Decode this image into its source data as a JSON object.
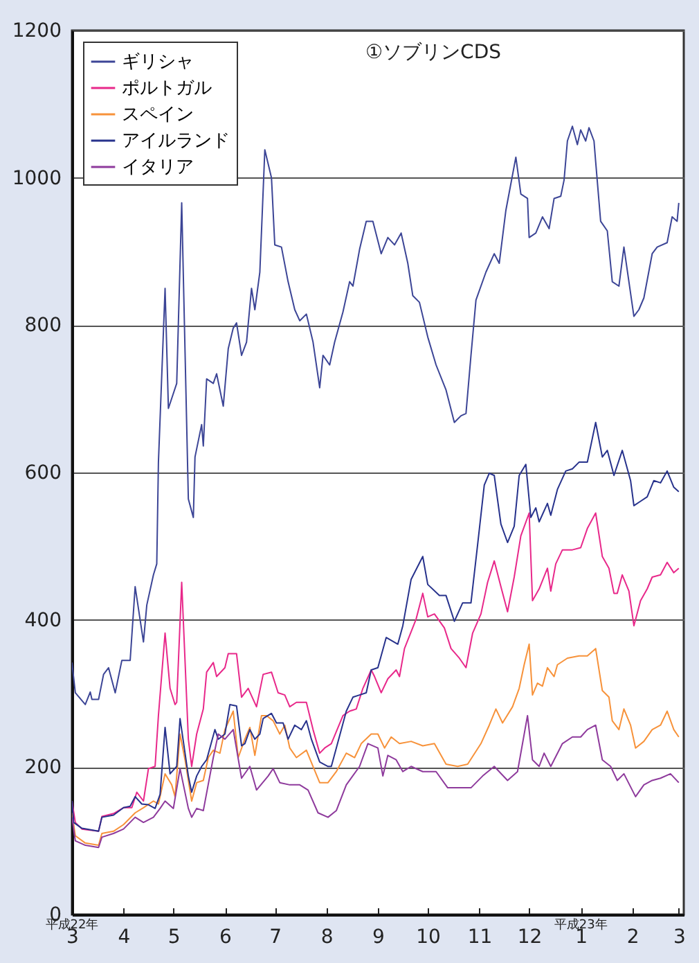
{
  "chart_data": {
    "type": "line",
    "title": "①ソブリンCDS",
    "xlim": [
      "2010-03-01",
      "2011-03-04"
    ],
    "ylim": [
      0,
      1200
    ],
    "xticks": [
      {
        "value": "2010-03-01",
        "label": "3"
      },
      {
        "value": "2010-04-01",
        "label": "4"
      },
      {
        "value": "2010-05-01",
        "label": "5"
      },
      {
        "value": "2010-06-01",
        "label": "6"
      },
      {
        "value": "2010-07-01",
        "label": "7"
      },
      {
        "value": "2010-08-01",
        "label": "8"
      },
      {
        "value": "2010-09-01",
        "label": "9"
      },
      {
        "value": "2010-10-01",
        "label": "10"
      },
      {
        "value": "2010-11-01",
        "label": "11"
      },
      {
        "value": "2010-12-01",
        "label": "12"
      },
      {
        "value": "2011-01-01",
        "label": "1"
      },
      {
        "value": "2011-02-01",
        "label": "2"
      },
      {
        "value": "2011-03-01",
        "label": "3"
      }
    ],
    "yticks": [
      0,
      200,
      400,
      600,
      800,
      1000,
      1200
    ],
    "grid": "y",
    "legend": "top left",
    "annotations": [
      "平成22年",
      "平成23年"
    ],
    "series": [
      {
        "name": "ギリシャ",
        "color": "#3c4596",
        "x": [
          "2010-03-01",
          "2010-03-03",
          "2010-03-09",
          "2010-03-12",
          "2010-03-13",
          "2010-03-17",
          "2010-03-20",
          "2010-03-23",
          "2010-03-27",
          "2010-03-31",
          "2010-04-05",
          "2010-04-08",
          "2010-04-13",
          "2010-04-15",
          "2010-04-19",
          "2010-04-21",
          "2010-04-22",
          "2010-04-26",
          "2010-04-28",
          "2010-05-03",
          "2010-05-06",
          "2010-05-10",
          "2010-05-13",
          "2010-05-14",
          "2010-05-18",
          "2010-05-19",
          "2010-05-21",
          "2010-05-25",
          "2010-05-27",
          "2010-05-31",
          "2010-06-03",
          "2010-06-06",
          "2010-06-08",
          "2010-06-11",
          "2010-06-14",
          "2010-06-17",
          "2010-06-19",
          "2010-06-22",
          "2010-06-25",
          "2010-06-29",
          "2010-07-01",
          "2010-07-05",
          "2010-07-09",
          "2010-07-13",
          "2010-07-16",
          "2010-07-20",
          "2010-07-24",
          "2010-07-28",
          "2010-07-30",
          "2010-08-03",
          "2010-08-06",
          "2010-08-11",
          "2010-08-15",
          "2010-08-17",
          "2010-08-21",
          "2010-08-25",
          "2010-08-29",
          "2010-09-03",
          "2010-09-07",
          "2010-09-11",
          "2010-09-15",
          "2010-09-19",
          "2010-09-22",
          "2010-09-26",
          "2010-10-01",
          "2010-10-06",
          "2010-10-12",
          "2010-10-17",
          "2010-10-21",
          "2010-10-24",
          "2010-10-27",
          "2010-10-30",
          "2010-11-05",
          "2010-11-10",
          "2010-11-13",
          "2010-11-17",
          "2010-11-23",
          "2010-11-26",
          "2010-11-30",
          "2010-12-01",
          "2010-12-05",
          "2010-12-09",
          "2010-12-13",
          "2010-12-16",
          "2010-12-20",
          "2010-12-22",
          "2010-12-24",
          "2010-12-27",
          "2010-12-30",
          "2011-01-01",
          "2011-01-04",
          "2011-01-06",
          "2011-01-09",
          "2011-01-10",
          "2011-01-13",
          "2011-01-17",
          "2011-01-20",
          "2011-01-24",
          "2011-01-27",
          "2011-01-30",
          "2011-02-02",
          "2011-02-05",
          "2011-02-08",
          "2011-02-13",
          "2011-02-16",
          "2011-02-22",
          "2011-02-25",
          "2011-02-28",
          "2011-03-01"
        ],
        "values": [
          342,
          301,
          285,
          302,
          292,
          292,
          326,
          335,
          301,
          345,
          345,
          445,
          370,
          420,
          461,
          476,
          614,
          850,
          687,
          721,
          966,
          564,
          539,
          621,
          665,
          636,
          727,
          721,
          734,
          690,
          768,
          796,
          803,
          759,
          777,
          850,
          821,
          872,
          1038,
          1000,
          909,
          906,
          859,
          821,
          806,
          815,
          777,
          715,
          759,
          746,
          777,
          818,
          859,
          853,
          903,
          941,
          941,
          897,
          919,
          909,
          925,
          884,
          840,
          831,
          784,
          746,
          712,
          668,
          677,
          680,
          759,
          834,
          872,
          897,
          884,
          956,
          1028,
          978,
          972,
          919,
          925,
          947,
          931,
          972,
          975,
          997,
          1050,
          1070,
          1045,
          1065,
          1050,
          1068,
          1050,
          1022,
          941,
          928,
          859,
          853,
          906,
          859,
          812,
          821,
          837,
          897,
          906,
          912,
          947,
          941,
          966
        ]
      },
      {
        "name": "ポルトガル",
        "color": "#e8288a",
        "x": [
          "2010-03-01",
          "2010-03-03",
          "2010-03-07",
          "2010-03-17",
          "2010-03-19",
          "2010-03-26",
          "2010-04-01",
          "2010-04-06",
          "2010-04-09",
          "2010-04-13",
          "2010-04-16",
          "2010-04-20",
          "2010-04-22",
          "2010-04-26",
          "2010-04-29",
          "2010-05-02",
          "2010-05-03",
          "2010-05-06",
          "2010-05-10",
          "2010-05-12",
          "2010-05-15",
          "2010-05-19",
          "2010-05-21",
          "2010-05-25",
          "2010-05-27",
          "2010-06-01",
          "2010-06-03",
          "2010-06-08",
          "2010-06-11",
          "2010-06-15",
          "2010-06-20",
          "2010-06-24",
          "2010-06-29",
          "2010-07-03",
          "2010-07-07",
          "2010-07-10",
          "2010-07-14",
          "2010-07-20",
          "2010-07-24",
          "2010-07-28",
          "2010-07-31",
          "2010-08-04",
          "2010-08-11",
          "2010-08-15",
          "2010-08-19",
          "2010-08-23",
          "2010-08-28",
          "2010-08-30",
          "2010-09-03",
          "2010-09-07",
          "2010-09-12",
          "2010-09-14",
          "2010-09-17",
          "2010-09-24",
          "2010-09-28",
          "2010-10-01",
          "2010-10-05",
          "2010-10-11",
          "2010-10-15",
          "2010-10-20",
          "2010-10-24",
          "2010-10-28",
          "2010-11-02",
          "2010-11-06",
          "2010-11-10",
          "2010-11-14",
          "2010-11-18",
          "2010-11-22",
          "2010-11-26",
          "2010-12-01",
          "2010-12-03",
          "2010-12-07",
          "2010-12-12",
          "2010-12-14",
          "2010-12-17",
          "2010-12-21",
          "2010-12-27",
          "2011-01-01",
          "2011-01-05",
          "2011-01-10",
          "2011-01-14",
          "2011-01-18",
          "2011-01-21",
          "2011-01-23",
          "2011-01-26",
          "2011-01-30",
          "2011-02-02",
          "2011-02-06",
          "2011-02-10",
          "2011-02-13",
          "2011-02-18",
          "2011-02-22",
          "2011-02-26",
          "2011-03-01"
        ],
        "values": [
          154,
          125,
          116,
          113,
          133,
          137,
          145,
          145,
          166,
          154,
          198,
          201,
          270,
          382,
          307,
          285,
          288,
          451,
          238,
          201,
          245,
          279,
          329,
          342,
          323,
          335,
          354,
          354,
          295,
          307,
          282,
          326,
          329,
          301,
          298,
          282,
          288,
          288,
          251,
          219,
          226,
          232,
          270,
          276,
          279,
          307,
          332,
          323,
          301,
          320,
          332,
          323,
          361,
          401,
          436,
          404,
          408,
          389,
          361,
          348,
          335,
          382,
          408,
          451,
          480,
          445,
          411,
          458,
          514,
          545,
          426,
          442,
          470,
          439,
          476,
          495,
          495,
          498,
          524,
          545,
          486,
          470,
          436,
          436,
          461,
          439,
          392,
          426,
          442,
          458,
          461,
          478,
          464,
          470
        ]
      },
      {
        "name": "スペイン",
        "color": "#f7923a",
        "x": [
          "2010-03-01",
          "2010-03-03",
          "2010-03-09",
          "2010-03-17",
          "2010-03-19",
          "2010-03-26",
          "2010-04-01",
          "2010-04-08",
          "2010-04-13",
          "2010-04-19",
          "2010-04-22",
          "2010-04-26",
          "2010-04-30",
          "2010-05-02",
          "2010-05-05",
          "2010-05-08",
          "2010-05-12",
          "2010-05-15",
          "2010-05-19",
          "2010-05-22",
          "2010-05-25",
          "2010-05-29",
          "2010-06-01",
          "2010-06-06",
          "2010-06-09",
          "2010-06-13",
          "2010-06-16",
          "2010-06-19",
          "2010-06-23",
          "2010-06-26",
          "2010-06-30",
          "2010-07-04",
          "2010-07-07",
          "2010-07-10",
          "2010-07-14",
          "2010-07-20",
          "2010-07-24",
          "2010-07-28",
          "2010-08-02",
          "2010-08-07",
          "2010-08-13",
          "2010-08-18",
          "2010-08-22",
          "2010-08-28",
          "2010-09-01",
          "2010-09-05",
          "2010-09-09",
          "2010-09-14",
          "2010-09-21",
          "2010-09-28",
          "2010-10-05",
          "2010-10-12",
          "2010-10-19",
          "2010-10-25",
          "2010-11-02",
          "2010-11-07",
          "2010-11-11",
          "2010-11-15",
          "2010-11-21",
          "2010-11-25",
          "2010-11-28",
          "2010-12-01",
          "2010-12-03",
          "2010-12-06",
          "2010-12-09",
          "2010-12-12",
          "2010-12-16",
          "2010-12-18",
          "2010-12-24",
          "2010-12-31",
          "2011-01-05",
          "2011-01-10",
          "2011-01-14",
          "2011-01-18",
          "2011-01-20",
          "2011-01-24",
          "2011-01-27",
          "2011-01-31",
          "2011-02-03",
          "2011-02-08",
          "2011-02-13",
          "2011-02-18",
          "2011-02-22",
          "2011-02-26",
          "2011-03-01"
        ],
        "values": [
          138,
          107,
          97,
          94,
          110,
          113,
          122,
          138,
          145,
          154,
          150,
          191,
          176,
          160,
          245,
          210,
          154,
          179,
          182,
          213,
          223,
          219,
          251,
          276,
          213,
          238,
          254,
          216,
          270,
          270,
          263,
          245,
          257,
          226,
          213,
          223,
          201,
          179,
          179,
          194,
          219,
          213,
          232,
          245,
          245,
          226,
          241,
          232,
          235,
          229,
          232,
          204,
          201,
          204,
          232,
          257,
          279,
          260,
          282,
          307,
          339,
          367,
          298,
          314,
          310,
          335,
          323,
          339,
          348,
          351,
          351,
          361,
          304,
          295,
          263,
          251,
          279,
          257,
          226,
          235,
          251,
          257,
          276,
          251,
          241
        ]
      },
      {
        "name": "アイルランド",
        "color": "#27328c",
        "x": [
          "2010-03-01",
          "2010-03-02",
          "2010-03-07",
          "2010-03-17",
          "2010-03-19",
          "2010-03-26",
          "2010-04-01",
          "2010-04-05",
          "2010-04-08",
          "2010-04-12",
          "2010-04-16",
          "2010-04-20",
          "2010-04-23",
          "2010-04-26",
          "2010-04-29",
          "2010-05-03",
          "2010-05-05",
          "2010-05-10",
          "2010-05-12",
          "2010-05-15",
          "2010-05-18",
          "2010-05-21",
          "2010-05-26",
          "2010-05-28",
          "2010-06-01",
          "2010-06-04",
          "2010-06-08",
          "2010-06-11",
          "2010-06-13",
          "2010-06-16",
          "2010-06-19",
          "2010-06-22",
          "2010-06-24",
          "2010-06-29",
          "2010-07-02",
          "2010-07-06",
          "2010-07-09",
          "2010-07-13",
          "2010-07-17",
          "2010-07-20",
          "2010-07-23",
          "2010-07-28",
          "2010-08-02",
          "2010-08-04",
          "2010-08-07",
          "2010-08-13",
          "2010-08-17",
          "2010-08-21",
          "2010-08-25",
          "2010-08-28",
          "2010-09-01",
          "2010-09-06",
          "2010-09-13",
          "2010-09-16",
          "2010-09-21",
          "2010-09-28",
          "2010-10-01",
          "2010-10-08",
          "2010-10-12",
          "2010-10-17",
          "2010-10-22",
          "2010-10-27",
          "2010-10-31",
          "2010-11-04",
          "2010-11-07",
          "2010-11-10",
          "2010-11-14",
          "2010-11-18",
          "2010-11-22",
          "2010-11-25",
          "2010-11-29",
          "2010-12-02",
          "2010-12-05",
          "2010-12-07",
          "2010-12-12",
          "2010-12-14",
          "2010-12-18",
          "2010-12-23",
          "2010-12-27",
          "2010-12-31",
          "2011-01-05",
          "2011-01-10",
          "2011-01-14",
          "2011-01-17",
          "2011-01-21",
          "2011-01-26",
          "2011-01-31",
          "2011-02-02",
          "2011-02-06",
          "2011-02-10",
          "2011-02-14",
          "2011-02-18",
          "2011-02-22",
          "2011-02-26",
          "2011-03-01"
        ],
        "values": [
          154,
          125,
          117,
          113,
          132,
          135,
          145,
          147,
          160,
          150,
          149,
          144,
          163,
          254,
          191,
          201,
          266,
          188,
          166,
          188,
          201,
          210,
          251,
          238,
          245,
          285,
          283,
          229,
          232,
          251,
          238,
          245,
          266,
          273,
          260,
          260,
          238,
          257,
          251,
          263,
          238,
          207,
          201,
          201,
          226,
          276,
          295,
          298,
          301,
          332,
          335,
          376,
          367,
          392,
          455,
          486,
          448,
          433,
          433,
          398,
          423,
          423,
          502,
          583,
          599,
          596,
          530,
          505,
          527,
          596,
          611,
          539,
          552,
          533,
          558,
          542,
          577,
          602,
          605,
          614,
          614,
          668,
          621,
          630,
          596,
          630,
          589,
          555,
          561,
          567,
          589,
          586,
          602,
          580,
          574
        ]
      },
      {
        "name": "イタリア",
        "color": "#8e3a9c",
        "x": [
          "2010-03-01",
          "2010-03-03",
          "2010-03-09",
          "2010-03-17",
          "2010-03-19",
          "2010-03-26",
          "2010-04-01",
          "2010-04-08",
          "2010-04-13",
          "2010-04-19",
          "2010-04-23",
          "2010-04-26",
          "2010-05-01",
          "2010-05-05",
          "2010-05-10",
          "2010-05-12",
          "2010-05-15",
          "2010-05-19",
          "2010-05-25",
          "2010-05-28",
          "2010-06-01",
          "2010-06-06",
          "2010-06-11",
          "2010-06-16",
          "2010-06-20",
          "2010-06-27",
          "2010-06-30",
          "2010-07-04",
          "2010-07-10",
          "2010-07-16",
          "2010-07-21",
          "2010-07-27",
          "2010-08-02",
          "2010-08-07",
          "2010-08-13",
          "2010-08-21",
          "2010-08-26",
          "2010-09-01",
          "2010-09-04",
          "2010-09-07",
          "2010-09-12",
          "2010-09-16",
          "2010-09-21",
          "2010-09-28",
          "2010-10-06",
          "2010-10-13",
          "2010-10-20",
          "2010-10-27",
          "2010-11-03",
          "2010-11-10",
          "2010-11-18",
          "2010-11-24",
          "2010-11-30",
          "2010-12-03",
          "2010-12-07",
          "2010-12-10",
          "2010-12-14",
          "2010-12-21",
          "2010-12-27",
          "2011-01-01",
          "2011-01-05",
          "2011-01-10",
          "2011-01-14",
          "2011-01-19",
          "2011-01-23",
          "2011-01-27",
          "2011-02-03",
          "2011-02-08",
          "2011-02-13",
          "2011-02-18",
          "2011-02-24",
          "2011-03-01"
        ],
        "values": [
          132,
          100,
          94,
          91,
          105,
          110,
          116,
          132,
          125,
          132,
          144,
          154,
          144,
          198,
          144,
          132,
          144,
          141,
          213,
          245,
          238,
          251,
          185,
          201,
          169,
          188,
          198,
          179,
          176,
          176,
          169,
          138,
          132,
          141,
          176,
          201,
          232,
          226,
          188,
          216,
          210,
          194,
          201,
          194,
          194,
          172,
          172,
          172,
          188,
          201,
          182,
          194,
          270,
          210,
          201,
          219,
          201,
          232,
          241,
          241,
          251,
          257,
          210,
          201,
          182,
          191,
          160,
          176,
          182,
          185,
          191,
          179
        ]
      }
    ]
  }
}
